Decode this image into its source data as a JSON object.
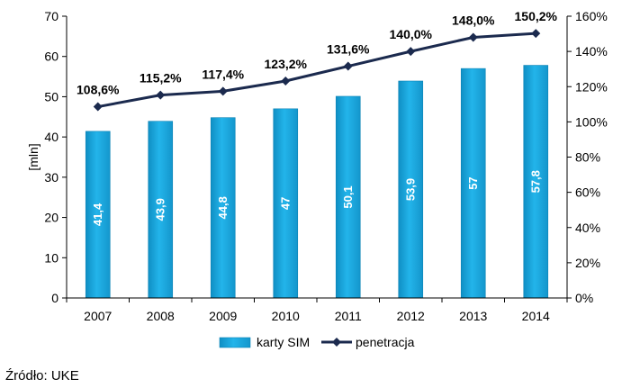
{
  "chart_data": {
    "type": "bar",
    "categories": [
      "2007",
      "2008",
      "2009",
      "2010",
      "2011",
      "2012",
      "2013",
      "2014"
    ],
    "series": [
      {
        "name": "karty SIM",
        "type": "bar",
        "axis": "left",
        "values": [
          41.4,
          43.9,
          44.8,
          47,
          50.1,
          53.9,
          57,
          57.8
        ],
        "labels": [
          "41,4",
          "43,9",
          "44,8",
          "47",
          "50,1",
          "53,9",
          "57",
          "57,8"
        ],
        "color": "#1aa5dd"
      },
      {
        "name": "penetracja",
        "type": "line",
        "axis": "right",
        "values": [
          108.6,
          115.2,
          117.4,
          123.2,
          131.6,
          140.0,
          148.0,
          150.2
        ],
        "labels": [
          "108,6%",
          "115,2%",
          "117,4%",
          "123,2%",
          "131,6%",
          "140,0%",
          "148,0%",
          "150,2%"
        ],
        "color": "#1b2a4e"
      }
    ],
    "ylabel": "[mln]",
    "ylim": [
      0,
      70
    ],
    "yticks": [
      "0",
      "10",
      "20",
      "30",
      "40",
      "50",
      "60",
      "70"
    ],
    "y2lim": [
      0,
      160
    ],
    "y2ticks": [
      "0%",
      "20%",
      "40%",
      "60%",
      "80%",
      "100%",
      "120%",
      "140%",
      "160%"
    ],
    "legend": "bottom",
    "grid": false
  },
  "source_text": "Źródło: UKE"
}
